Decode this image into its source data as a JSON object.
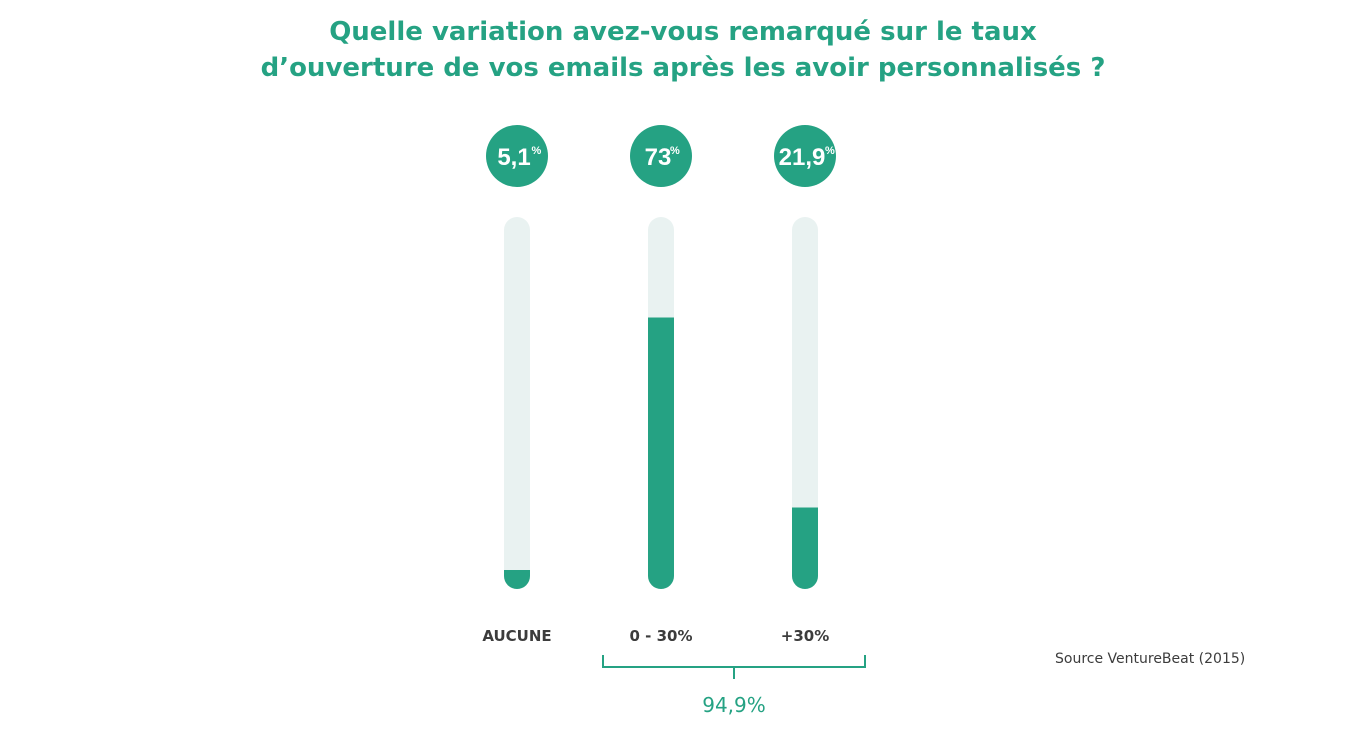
{
  "title_lines": [
    "Quelle variation avez-vous remarqué sur le taux",
    "d’ouverture de vos emails après les avoir personnalisés ?"
  ],
  "source": "Source VentureBeat (2015)",
  "colors": {
    "accent": "#25a283",
    "track": "#e9f2f1",
    "text": "#3c3c3c"
  },
  "chart_data": {
    "type": "bar",
    "orientation": "vertical",
    "title": "Quelle variation avez-vous remarqué sur le taux d’ouverture de vos emails après les avoir personnalisés ?",
    "categories": [
      "AUCUNE",
      "0 - 30%",
      "+30%"
    ],
    "values": [
      5.1,
      73,
      21.9
    ],
    "value_labels": [
      "5,1",
      "73",
      "21,9"
    ],
    "unit": "%",
    "ylim": [
      0,
      100
    ],
    "grid": false,
    "legend": "none",
    "annotations": [
      {
        "label": "94,9%",
        "spans": [
          "0 - 30%",
          "+30%"
        ]
      }
    ]
  }
}
